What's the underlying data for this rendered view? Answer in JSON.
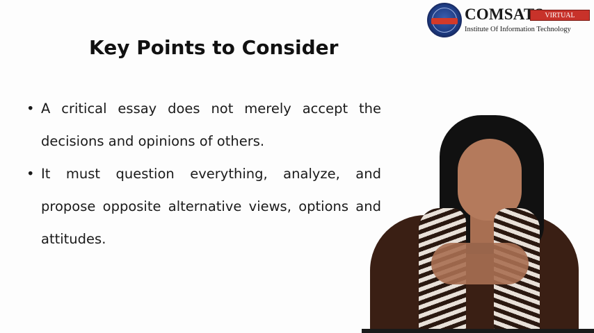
{
  "logo": {
    "name": "COMSATS",
    "seal_text": "COMSATS",
    "tag": "VIRTUAL CAMPUS",
    "institute": "Institute Of Information Technology"
  },
  "slide": {
    "title": "Key Points to Consider",
    "bullets": [
      "A critical essay does not merely accept the decisions and opinions of others.",
      "It must question everything, analyze, and propose opposite alternative views, options and attitudes."
    ]
  },
  "colors": {
    "background": "#fdfdfd",
    "logo_tag_bg": "#c8322a",
    "seal": "#1d3a80"
  },
  "icons": {
    "logo": "comsats-seal-icon",
    "bullet": "bullet-dot"
  }
}
